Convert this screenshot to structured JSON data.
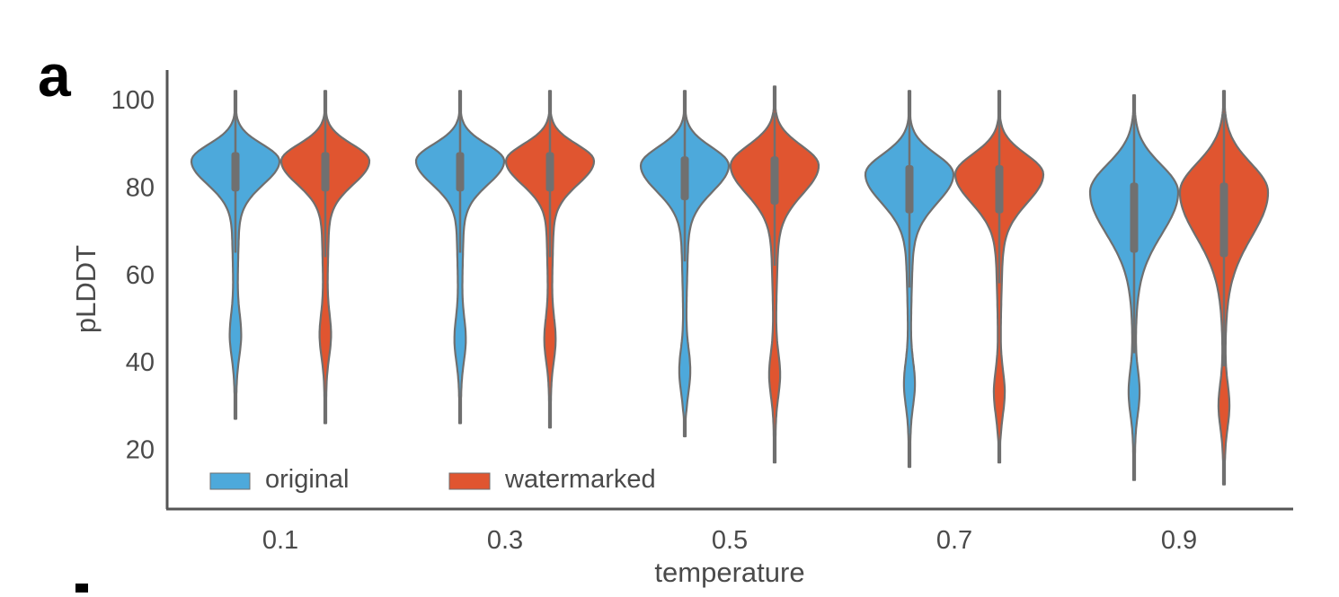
{
  "panel_label": "a",
  "colors": {
    "original": "#4DA9DB",
    "watermarked": "#E05530",
    "outline": "#6f6f6f",
    "box": "#707070"
  },
  "chart_data": {
    "type": "violin",
    "title": "",
    "xlabel": "temperature",
    "ylabel": "pLDDT",
    "categories": [
      "0.1",
      "0.3",
      "0.5",
      "0.7",
      "0.9"
    ],
    "yticks": [
      "20",
      "40",
      "60",
      "80",
      "100"
    ],
    "ylim": [
      5,
      107
    ],
    "grid": false,
    "legend": {
      "placement": "bottom-left",
      "entries": [
        "original",
        "watermarked"
      ]
    },
    "series": [
      {
        "name": "original",
        "stats": [
          {
            "min": 27,
            "max": 102,
            "mode": 86,
            "q1": 79,
            "median": 84,
            "q3": 88,
            "whisker_low": 65,
            "whisker_high": 97,
            "secondary_mode": 46
          },
          {
            "min": 26,
            "max": 102,
            "mode": 86,
            "q1": 79,
            "median": 84,
            "q3": 88,
            "whisker_low": 65,
            "whisker_high": 97,
            "secondary_mode": 45
          },
          {
            "min": 23,
            "max": 102,
            "mode": 85,
            "q1": 77,
            "median": 83,
            "q3": 87,
            "whisker_low": 63,
            "whisker_high": 97,
            "secondary_mode": 38
          },
          {
            "min": 16,
            "max": 102,
            "mode": 83,
            "q1": 74,
            "median": 80,
            "q3": 85,
            "whisker_low": 57,
            "whisker_high": 97,
            "secondary_mode": 35
          },
          {
            "min": 13,
            "max": 101,
            "mode": 79,
            "q1": 65,
            "median": 75,
            "q3": 81,
            "whisker_low": 42,
            "whisker_high": 97,
            "secondary_mode": 33
          }
        ]
      },
      {
        "name": "watermarked",
        "stats": [
          {
            "min": 26,
            "max": 102,
            "mode": 86,
            "q1": 79,
            "median": 84,
            "q3": 88,
            "whisker_low": 64,
            "whisker_high": 97,
            "secondary_mode": 46
          },
          {
            "min": 25,
            "max": 102,
            "mode": 86,
            "q1": 79,
            "median": 84,
            "q3": 88,
            "whisker_low": 64,
            "whisker_high": 97,
            "secondary_mode": 45
          },
          {
            "min": 17,
            "max": 103,
            "mode": 85,
            "q1": 76,
            "median": 83,
            "q3": 87,
            "whisker_low": 62,
            "whisker_high": 97,
            "secondary_mode": 37
          },
          {
            "min": 17,
            "max": 102,
            "mode": 83,
            "q1": 74,
            "median": 80,
            "q3": 85,
            "whisker_low": 58,
            "whisker_high": 97,
            "secondary_mode": 33
          },
          {
            "min": 12,
            "max": 102,
            "mode": 79,
            "q1": 64,
            "median": 75,
            "q3": 81,
            "whisker_low": 39,
            "whisker_high": 97,
            "secondary_mode": 30
          }
        ]
      }
    ]
  }
}
